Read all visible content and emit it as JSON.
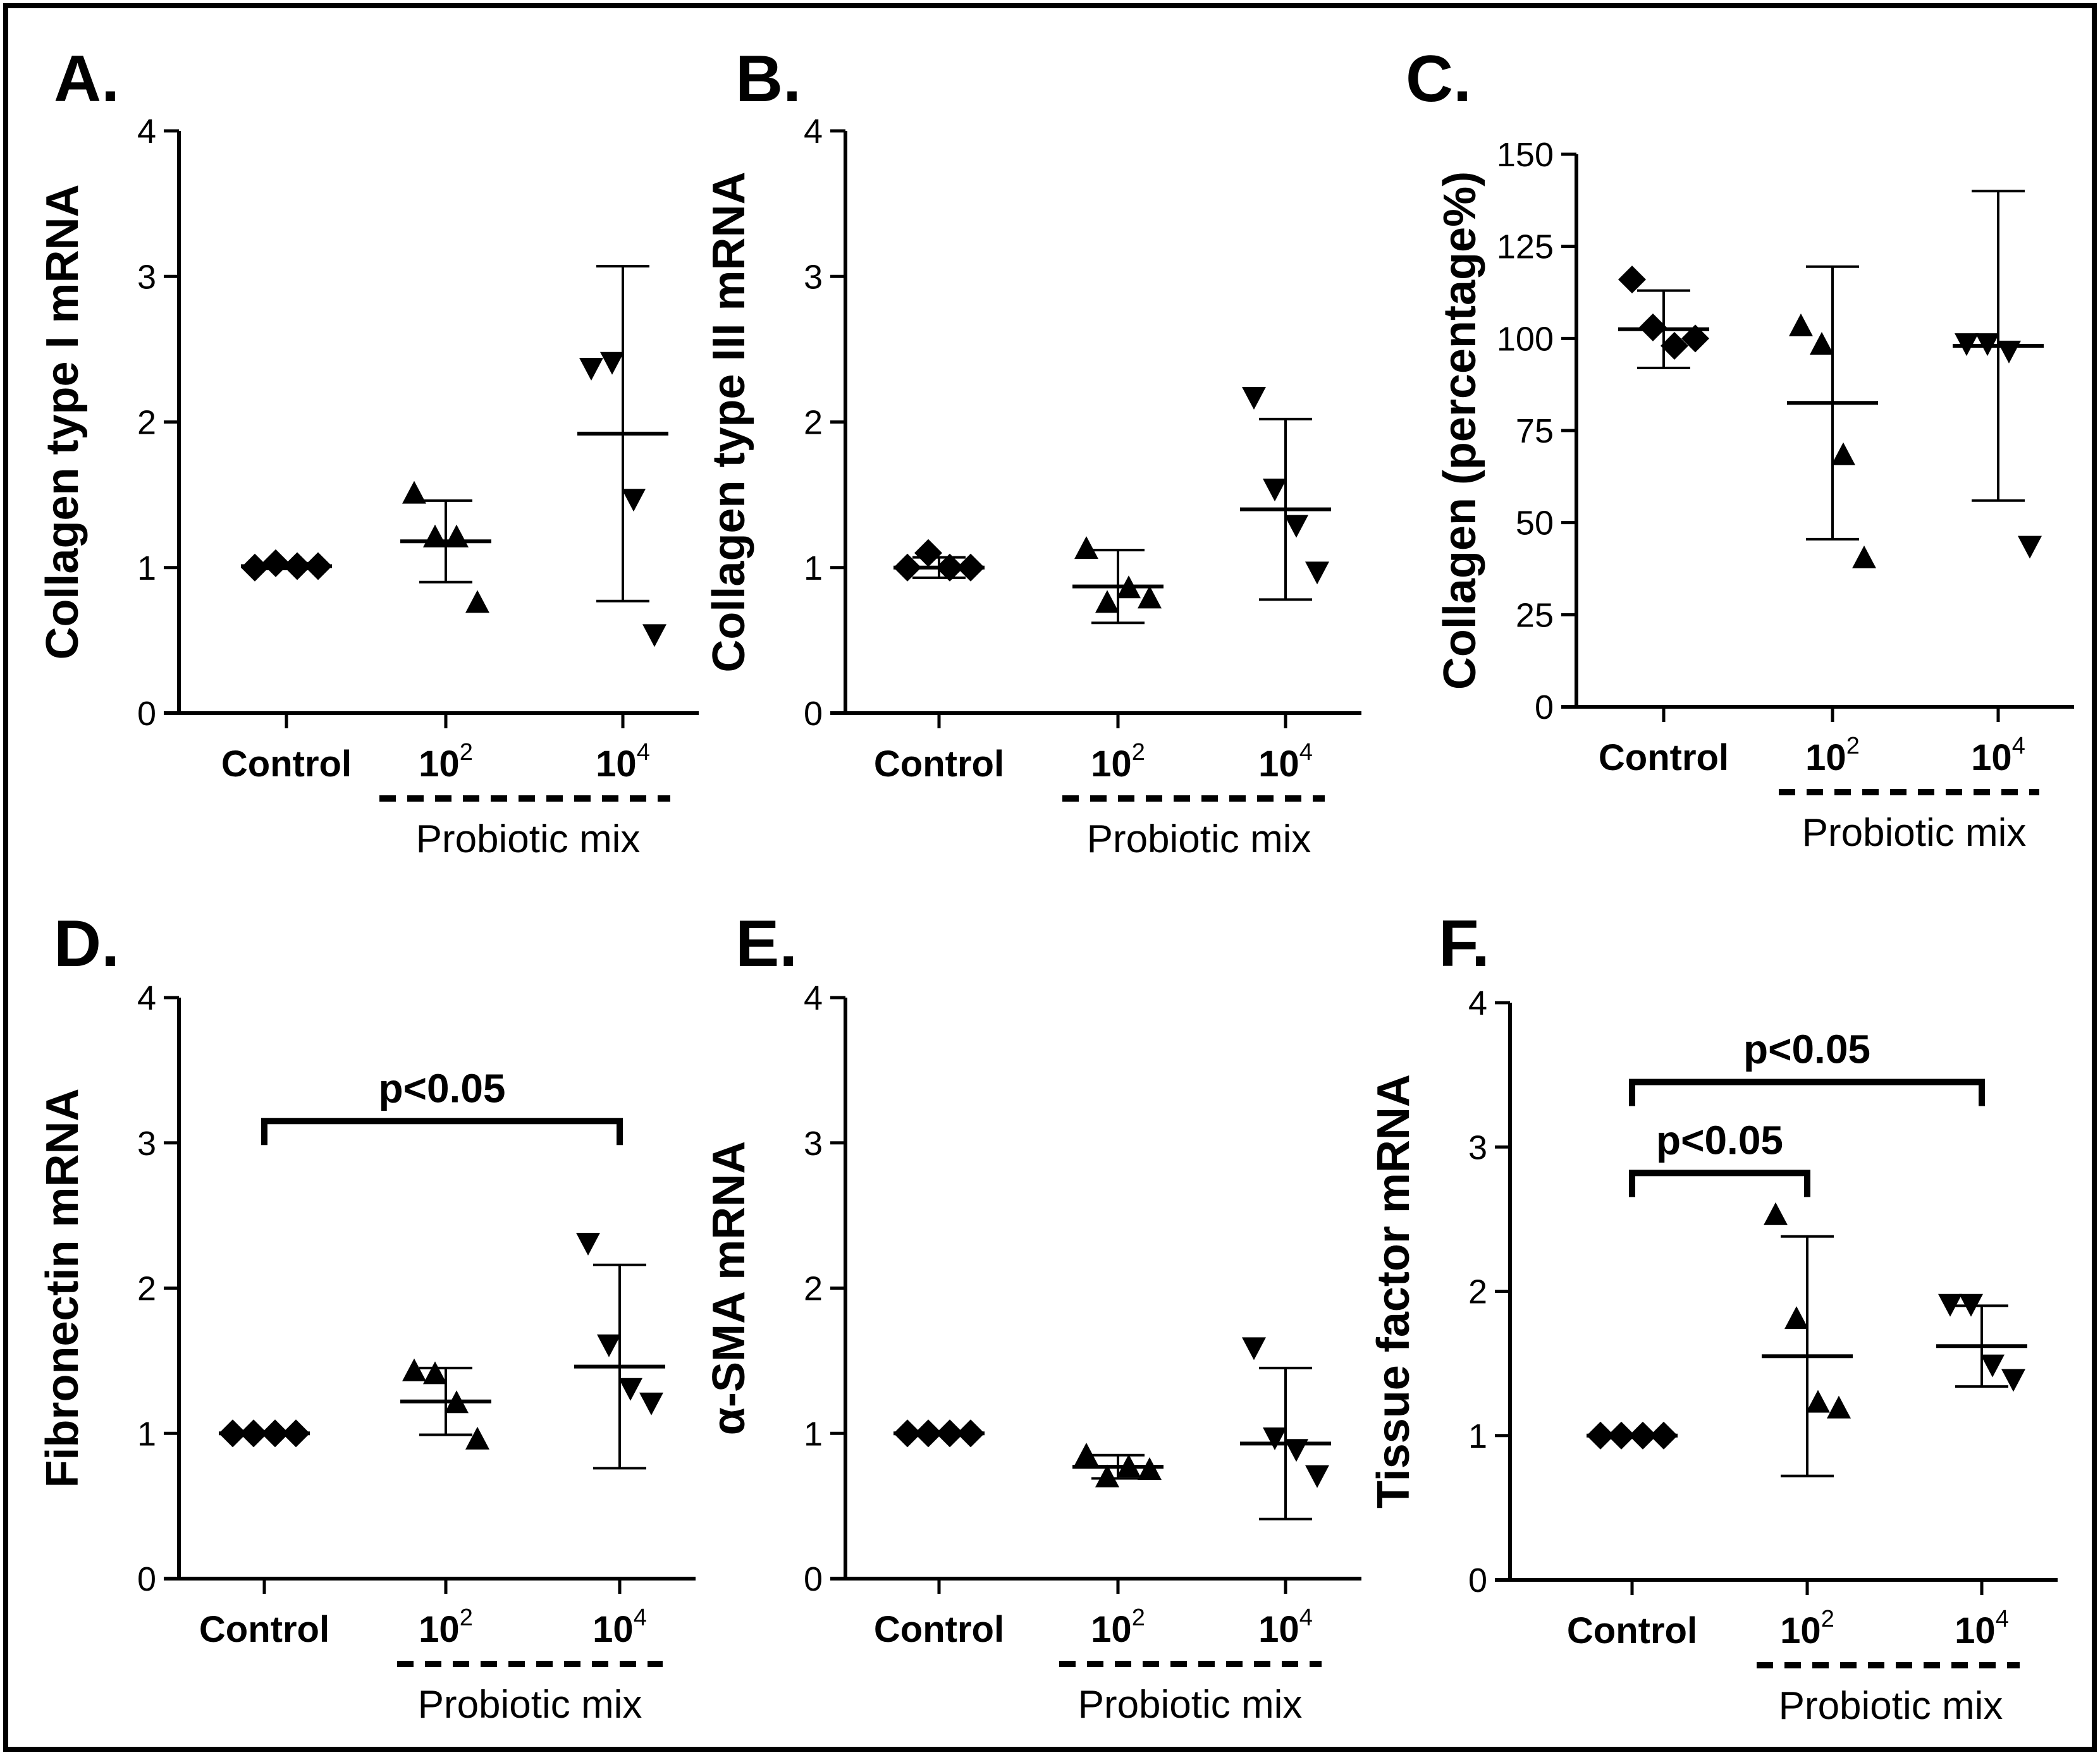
{
  "chart_data": [
    {
      "type": "scatter",
      "panel": "A.",
      "ylabel": "Collagen type I mRNA",
      "ylim": [
        0,
        4
      ],
      "yticks": [
        0,
        1,
        2,
        3,
        4
      ],
      "categories": [
        "Control",
        "10",
        "10"
      ],
      "category_exponents": [
        "",
        "2",
        "4"
      ],
      "group_label": "Probiotic mix",
      "markers": [
        "diamond",
        "triangle-up",
        "triangle-down"
      ],
      "points": [
        [
          1.0,
          1.03,
          1.01,
          1.01
        ],
        [
          1.5,
          1.2,
          1.2,
          0.75
        ],
        [
          2.38,
          2.42,
          1.48,
          0.55
        ]
      ],
      "mean": [
        1.01,
        1.18,
        1.92
      ],
      "error": [
        0.02,
        0.28,
        1.15
      ],
      "significance": []
    },
    {
      "type": "scatter",
      "panel": "B.",
      "ylabel": "Collagen type III mRNA",
      "ylim": [
        0,
        4
      ],
      "yticks": [
        0,
        1,
        2,
        3,
        4
      ],
      "categories": [
        "Control",
        "10",
        "10"
      ],
      "category_exponents": [
        "",
        "2",
        "4"
      ],
      "group_label": "Probiotic mix",
      "markers": [
        "diamond",
        "triangle-up",
        "triangle-down"
      ],
      "points": [
        [
          1.0,
          1.1,
          1.0,
          1.0
        ],
        [
          1.12,
          0.75,
          0.85,
          0.78
        ],
        [
          2.18,
          1.55,
          1.3,
          0.98
        ]
      ],
      "mean": [
        1.0,
        0.87,
        1.4
      ],
      "error": [
        0.07,
        0.25,
        0.62
      ],
      "significance": []
    },
    {
      "type": "scatter",
      "panel": "C.",
      "ylabel": "Collagen (percentage%)",
      "ylim": [
        0,
        150
      ],
      "yticks": [
        0,
        25,
        50,
        75,
        100,
        125,
        150
      ],
      "categories": [
        "Control",
        "10",
        "10"
      ],
      "category_exponents": [
        "",
        "2",
        "4"
      ],
      "group_label": "Probiotic mix",
      "markers": [
        "diamond",
        "triangle-up",
        "triangle-down"
      ],
      "points": [
        [
          116,
          103,
          98,
          100
        ],
        [
          103,
          98,
          68,
          40
        ],
        [
          99,
          99,
          97,
          44
        ]
      ],
      "mean": [
        102.5,
        82.5,
        98.0
      ],
      "error": [
        10.5,
        37,
        42
      ],
      "significance": []
    },
    {
      "type": "scatter",
      "panel": "D.",
      "ylabel": "Fibronectin mRNA",
      "ylim": [
        0,
        4
      ],
      "yticks": [
        0,
        1,
        2,
        3,
        4
      ],
      "categories": [
        "Control",
        "10",
        "10"
      ],
      "category_exponents": [
        "",
        "2",
        "4"
      ],
      "group_label": "Probiotic mix",
      "markers": [
        "diamond",
        "triangle-up",
        "triangle-down"
      ],
      "points": [
        [
          1.0,
          1.0,
          1.0,
          1.0
        ],
        [
          1.42,
          1.4,
          1.2,
          0.95
        ],
        [
          2.32,
          1.62,
          1.32,
          1.22
        ]
      ],
      "mean": [
        1.0,
        1.22,
        1.46
      ],
      "error": [
        0.0,
        0.23,
        0.7
      ],
      "significance": [
        {
          "from": 0,
          "to": 2,
          "label": "p<0.05",
          "y": 3.15
        }
      ]
    },
    {
      "type": "scatter",
      "panel": "E.",
      "ylabel": "α-SMA mRNA",
      "ylim": [
        0,
        4
      ],
      "yticks": [
        0,
        1,
        2,
        3,
        4
      ],
      "categories": [
        "Control",
        "10",
        "10"
      ],
      "category_exponents": [
        "",
        "2",
        "4"
      ],
      "group_label": "Probiotic mix",
      "markers": [
        "diamond",
        "triangle-up",
        "triangle-down"
      ],
      "points": [
        [
          1.0,
          1.0,
          1.0,
          1.0
        ],
        [
          0.84,
          0.69,
          0.76,
          0.74
        ],
        [
          1.6,
          0.98,
          0.9,
          0.72
        ]
      ],
      "mean": [
        1.0,
        0.77,
        0.93
      ],
      "error": [
        0.0,
        0.08,
        0.52
      ],
      "significance": []
    },
    {
      "type": "scatter",
      "panel": "F.",
      "ylabel": "Tissue factor mRNA",
      "ylim": [
        0,
        4
      ],
      "yticks": [
        0,
        1,
        2,
        3,
        4
      ],
      "categories": [
        "Control",
        "10",
        "10"
      ],
      "category_exponents": [
        "",
        "2",
        "4"
      ],
      "group_label": "Probiotic mix",
      "markers": [
        "diamond",
        "triangle-up",
        "triangle-down"
      ],
      "points": [
        [
          1.0,
          1.0,
          1.0,
          1.0
        ],
        [
          2.52,
          1.8,
          1.22,
          1.18
        ],
        [
          1.92,
          1.92,
          1.5,
          1.4
        ]
      ],
      "mean": [
        1.0,
        1.55,
        1.62
      ],
      "error": [
        0.0,
        0.83,
        0.28
      ],
      "significance": [
        {
          "from": 0,
          "to": 2,
          "label": "p<0.05",
          "y": 3.45
        },
        {
          "from": 0,
          "to": 1,
          "label": "p<0.05",
          "y": 2.82
        }
      ]
    }
  ]
}
